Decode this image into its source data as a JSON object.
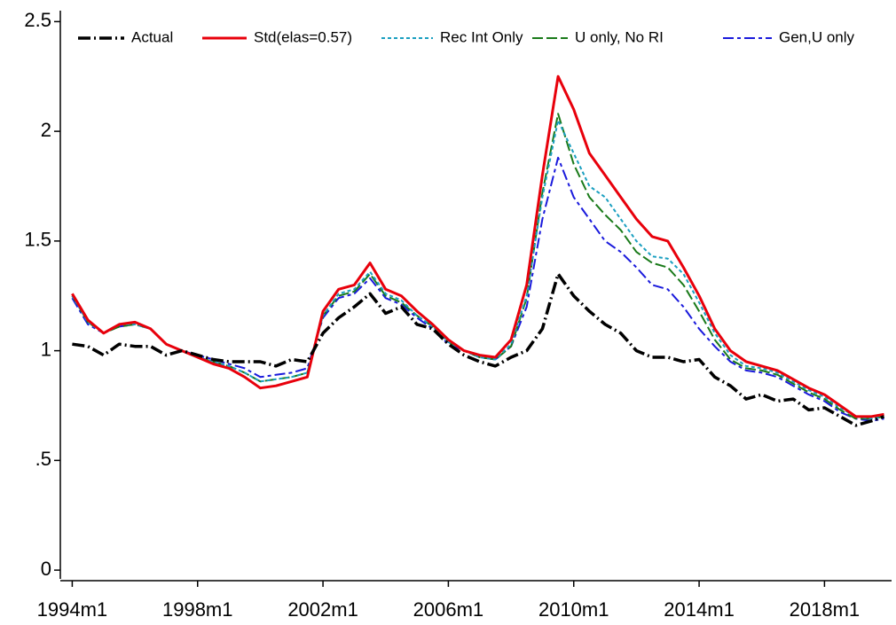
{
  "chart_data": {
    "type": "line",
    "x": [
      1994,
      1994.5,
      1995,
      1995.5,
      1996,
      1996.5,
      1997,
      1997.5,
      1998,
      1998.5,
      1999,
      1999.5,
      2000,
      2000.5,
      2001,
      2001.5,
      2002,
      2002.5,
      2003,
      2003.5,
      2004,
      2004.5,
      2005,
      2005.5,
      2006,
      2006.5,
      2007,
      2007.5,
      2008,
      2008.5,
      2009,
      2009.5,
      2010,
      2010.5,
      2011,
      2011.5,
      2012,
      2012.5,
      2013,
      2013.5,
      2014,
      2014.5,
      2015,
      2015.5,
      2016,
      2016.5,
      2017,
      2017.5,
      2018,
      2018.5,
      2019,
      2019.5,
      2019.9
    ],
    "series": [
      {
        "name": "Actual",
        "color": "#000000",
        "dash": "14 4 2 4",
        "width": 3.5,
        "values": [
          1.03,
          1.02,
          0.98,
          1.03,
          1.02,
          1.02,
          0.98,
          1.0,
          0.98,
          0.96,
          0.95,
          0.95,
          0.95,
          0.93,
          0.96,
          0.95,
          1.08,
          1.15,
          1.2,
          1.26,
          1.17,
          1.2,
          1.12,
          1.1,
          1.03,
          0.98,
          0.95,
          0.93,
          0.97,
          1.0,
          1.1,
          1.35,
          1.25,
          1.18,
          1.12,
          1.08,
          1.0,
          0.97,
          0.97,
          0.95,
          0.96,
          0.88,
          0.84,
          0.78,
          0.8,
          0.77,
          0.78,
          0.73,
          0.74,
          0.7,
          0.66,
          0.68,
          0.7
        ]
      },
      {
        "name": "Std(elas=0.57)",
        "color": "#e8000b",
        "dash": "none",
        "width": 3,
        "values": [
          1.26,
          1.14,
          1.08,
          1.12,
          1.13,
          1.1,
          1.03,
          1.0,
          0.97,
          0.94,
          0.92,
          0.88,
          0.83,
          0.84,
          0.86,
          0.88,
          1.18,
          1.28,
          1.3,
          1.4,
          1.28,
          1.25,
          1.18,
          1.12,
          1.05,
          1.0,
          0.98,
          0.97,
          1.05,
          1.3,
          1.8,
          2.25,
          2.1,
          1.9,
          1.8,
          1.7,
          1.6,
          1.52,
          1.5,
          1.38,
          1.25,
          1.1,
          1.0,
          0.95,
          0.93,
          0.91,
          0.87,
          0.83,
          0.8,
          0.75,
          0.7,
          0.7,
          0.71
        ]
      },
      {
        "name": "Rec Int Only",
        "color": "#1a9fc0",
        "dash": "4 3",
        "width": 2,
        "values": [
          1.25,
          1.13,
          1.08,
          1.12,
          1.12,
          1.1,
          1.03,
          1.0,
          0.97,
          0.95,
          0.93,
          0.9,
          0.86,
          0.87,
          0.88,
          0.9,
          1.16,
          1.26,
          1.28,
          1.36,
          1.26,
          1.23,
          1.16,
          1.11,
          1.04,
          1.0,
          0.97,
          0.96,
          1.03,
          1.25,
          1.7,
          2.05,
          1.9,
          1.75,
          1.7,
          1.6,
          1.5,
          1.43,
          1.42,
          1.35,
          1.22,
          1.08,
          0.98,
          0.93,
          0.92,
          0.9,
          0.86,
          0.82,
          0.79,
          0.74,
          0.7,
          0.69,
          0.7
        ]
      },
      {
        "name": "U only, No RI",
        "color": "#1a7a1a",
        "dash": "12 4",
        "width": 2,
        "values": [
          1.25,
          1.13,
          1.08,
          1.11,
          1.12,
          1.1,
          1.03,
          1.0,
          0.97,
          0.95,
          0.93,
          0.9,
          0.86,
          0.87,
          0.88,
          0.9,
          1.16,
          1.25,
          1.27,
          1.35,
          1.25,
          1.22,
          1.16,
          1.11,
          1.04,
          1.0,
          0.97,
          0.96,
          1.02,
          1.24,
          1.72,
          2.08,
          1.85,
          1.7,
          1.62,
          1.55,
          1.45,
          1.4,
          1.38,
          1.3,
          1.18,
          1.05,
          0.96,
          0.92,
          0.91,
          0.89,
          0.85,
          0.81,
          0.78,
          0.73,
          0.69,
          0.69,
          0.7
        ]
      },
      {
        "name": "Gen,U only",
        "color": "#1a1adc",
        "dash": "12 4 4 4",
        "width": 2,
        "values": [
          1.24,
          1.12,
          1.08,
          1.11,
          1.12,
          1.1,
          1.03,
          1.0,
          0.98,
          0.96,
          0.94,
          0.92,
          0.88,
          0.89,
          0.9,
          0.92,
          1.15,
          1.24,
          1.26,
          1.33,
          1.24,
          1.21,
          1.15,
          1.1,
          1.03,
          1.0,
          0.97,
          0.96,
          1.02,
          1.2,
          1.6,
          1.88,
          1.7,
          1.6,
          1.5,
          1.45,
          1.38,
          1.3,
          1.28,
          1.2,
          1.1,
          1.02,
          0.95,
          0.91,
          0.9,
          0.88,
          0.84,
          0.8,
          0.77,
          0.72,
          0.69,
          0.68,
          0.69
        ]
      }
    ],
    "ylim": [
      -0.04,
      2.55
    ],
    "yticks": [
      0,
      {
        "value": 0.5,
        "label": ".5"
      },
      1,
      1.5,
      2,
      2.5
    ],
    "xlim": [
      1993.62,
      2020.14
    ],
    "xticks": [
      {
        "value": 1994,
        "label": "1994m1"
      },
      {
        "value": 1998,
        "label": "1998m1"
      },
      {
        "value": 2002,
        "label": "2002m1"
      },
      {
        "value": 2006,
        "label": "2006m1"
      },
      {
        "value": 2010,
        "label": "2010m1"
      },
      {
        "value": 2014,
        "label": "2014m1"
      },
      {
        "value": 2018,
        "label": "2018m1"
      }
    ],
    "legend": "top"
  }
}
